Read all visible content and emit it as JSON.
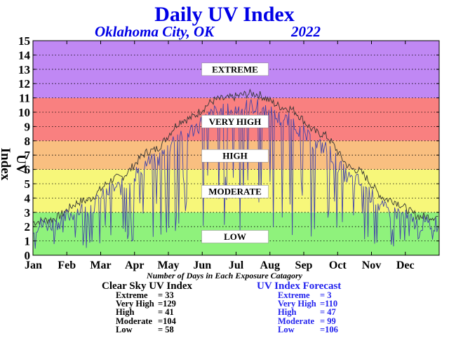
{
  "header": {
    "title": "Daily UV Index",
    "location": "Oklahoma City, OK",
    "year": "2022"
  },
  "chart_data": {
    "type": "line",
    "title": "Daily UV Index",
    "ylabel": "UV Index",
    "xlabel": "Number of Days in Each Exposure Catagory",
    "ylim": [
      0,
      15
    ],
    "yticks": [
      0,
      1,
      2,
      3,
      4,
      5,
      6,
      7,
      8,
      9,
      10,
      11,
      12,
      13,
      14,
      15
    ],
    "month_labels": [
      "Jan",
      "Feb",
      "Mar",
      "Apr",
      "May",
      "Jun",
      "Jul",
      "Aug",
      "Sep",
      "Oct",
      "Nov",
      "Dec"
    ],
    "grid": true,
    "bands": [
      {
        "label": "LOW",
        "from": 0,
        "to": 3,
        "color": "#8ff27c"
      },
      {
        "label": "MODERATE",
        "from": 3,
        "to": 6,
        "color": "#f7f77a"
      },
      {
        "label": "HIGH",
        "from": 6,
        "to": 8,
        "color": "#f9bf80"
      },
      {
        "label": "VERY HIGH",
        "from": 8,
        "to": 11,
        "color": "#f98080"
      },
      {
        "label": "EXTREME",
        "from": 11,
        "to": 15,
        "color": "#c088f4"
      }
    ],
    "series": [
      {
        "name": "Clear Sky UV Index",
        "color": "#333333",
        "monthly_values": [
          2.5,
          3.8,
          5.4,
          7.3,
          9.5,
          10.9,
          11.3,
          10.3,
          8.5,
          6.0,
          3.9,
          2.7
        ]
      },
      {
        "name": "UV Index Forecast",
        "color": "#4444aa",
        "monthly_values": [
          2.2,
          3.2,
          4.7,
          6.5,
          8.6,
          10.0,
          10.4,
          9.4,
          7.6,
          5.2,
          3.1,
          2.2
        ]
      }
    ]
  },
  "stats": {
    "clear_sky": {
      "title": "Clear Sky UV Index",
      "rows": [
        {
          "label": "Extreme",
          "value": "= 33"
        },
        {
          "label": "Very High",
          "value": "=129"
        },
        {
          "label": "High",
          "value": "= 41"
        },
        {
          "label": "Moderate",
          "value": "=104"
        },
        {
          "label": "Low",
          "value": "= 58"
        }
      ]
    },
    "forecast": {
      "title": "UV Index Forecast",
      "rows": [
        {
          "label": "Extreme",
          "value": "=  3"
        },
        {
          "label": "Very High",
          "value": "=110"
        },
        {
          "label": "High",
          "value": "= 47"
        },
        {
          "label": "Moderate",
          "value": "= 99"
        },
        {
          "label": "Low",
          "value": "=106"
        }
      ]
    }
  }
}
